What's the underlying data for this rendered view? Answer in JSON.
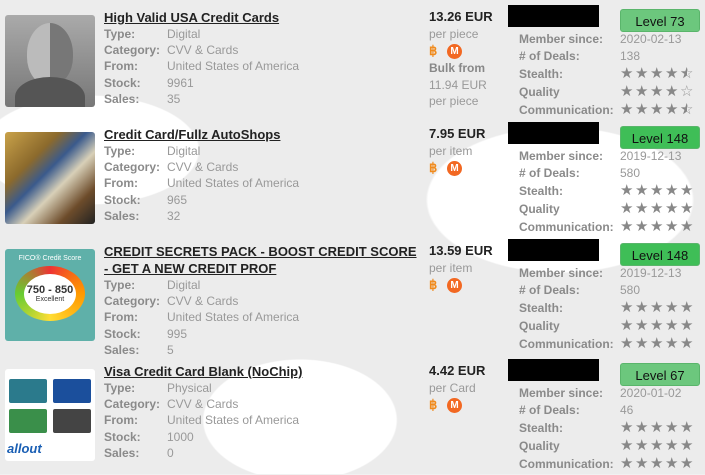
{
  "listings": [
    {
      "title": "High Valid USA Credit Cards",
      "type": "Digital",
      "category": "CVV & Cards",
      "from": "United States of America",
      "stock": "9961",
      "sales": "35",
      "price": "13.26 EUR",
      "unit": "per piece",
      "bulk_label": "Bulk from",
      "bulk_price": "11.94 EUR",
      "bulk_unit": "per piece",
      "level": "Level 73",
      "member_since": "2020-02-13",
      "deals": "138",
      "stealth": 4.5,
      "quality": 4,
      "communication": 4.5,
      "image": "alien-avatar"
    },
    {
      "title": "Credit Card/Fullz AutoShops",
      "type": "Digital",
      "category": "CVV & Cards",
      "from": "United States of America",
      "stock": "965",
      "sales": "32",
      "price": "7.95 EUR",
      "unit": "per item",
      "level": "Level 148",
      "member_since": "2019-12-13",
      "deals": "580",
      "stealth": 5,
      "quality": 5,
      "communication": 5,
      "image": "credit-cards-pile"
    },
    {
      "title": "CREDIT SECRETS PACK - BOOST CREDIT SCORE - GET A NEW CREDIT PROF",
      "type": "Digital",
      "category": "CVV & Cards",
      "from": "United States of America",
      "stock": "995",
      "sales": "5",
      "price": "13.59 EUR",
      "unit": "per item",
      "level": "Level 148",
      "member_since": "2019-12-13",
      "deals": "580",
      "stealth": 5,
      "quality": 5,
      "communication": 5,
      "image": "fico-gauge",
      "image_text": {
        "top": "FICO® Credit Score",
        "range": "750 - 850",
        "sub": "Excellent"
      }
    },
    {
      "title": "Visa Credit Card Blank (NoChip)",
      "type": "Physical",
      "category": "CVV & Cards",
      "from": "United States of America",
      "stock": "1000",
      "sales": "0",
      "price": "4.42 EUR",
      "unit": "per Card",
      "level": "Level 67",
      "member_since": "2020-01-02",
      "deals": "46",
      "stealth": 5,
      "quality": 5,
      "communication": 5,
      "image": "blank-cards",
      "image_text": {
        "logo": "allout"
      }
    }
  ],
  "labels": {
    "type": "Type:",
    "category": "Category:",
    "from": "From:",
    "stock": "Stock:",
    "sales": "Sales:",
    "member_since": "Member since:",
    "deals": "# of Deals:",
    "stealth": "Stealth:",
    "quality": "Quality",
    "communication": "Communication:",
    "btc": "฿",
    "xmr": "M"
  },
  "colors": {
    "level_green": "#6cc77d",
    "level_green_bright": "#3fbe57",
    "btc": "#f08a1c",
    "xmr": "#f26822"
  }
}
